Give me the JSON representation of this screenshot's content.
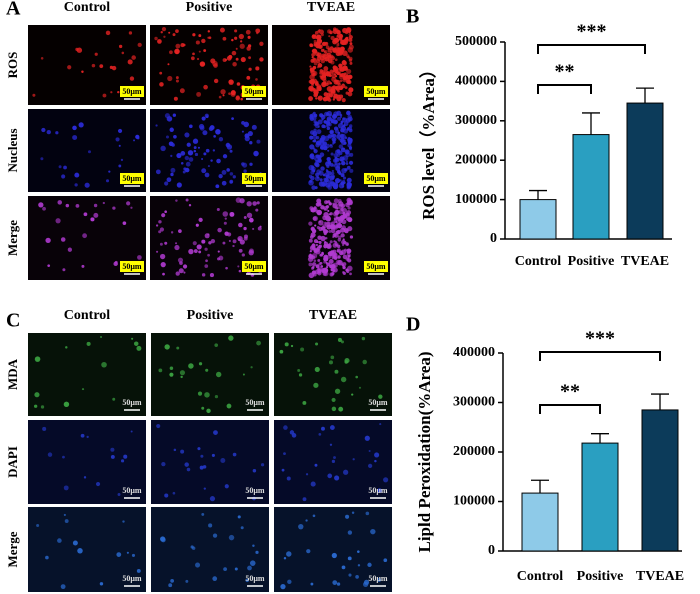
{
  "panels": [
    {
      "letter": "A",
      "columns": [
        "Control",
        "Positive",
        "TVEAE"
      ],
      "rows": [
        "ROS",
        "Nucleus",
        "Merge"
      ],
      "scale_bar": "50μm"
    },
    {
      "letter": "C",
      "columns": [
        "Control",
        "Positive",
        "TVEAE"
      ],
      "rows": [
        "MDA",
        "DAPI",
        "Merge"
      ],
      "scale_bar": "50μm"
    }
  ],
  "chart_data": [
    {
      "type": "bar",
      "panel_label": "B",
      "y_label": "ROS level（%Area）",
      "categories": [
        "Control",
        "Positive",
        "TVEAE"
      ],
      "values": [
        100000,
        265000,
        345000
      ],
      "errors": [
        23000,
        55000,
        38000
      ],
      "colors": [
        "#8ecae8",
        "#2a9fc1",
        "#0c3b5a"
      ],
      "ylim": [
        0,
        500000
      ],
      "yticks": [
        0,
        100000,
        200000,
        300000,
        400000,
        500000
      ],
      "annotations": [
        {
          "text": "**",
          "from": 0,
          "to": 1
        },
        {
          "text": "***",
          "from": 0,
          "to": 2
        }
      ]
    },
    {
      "type": "bar",
      "panel_label": "D",
      "y_label": "Lipld Peroxidation(%Area)",
      "categories": [
        "Control",
        "Positive",
        "TVEAE"
      ],
      "values": [
        117000,
        218000,
        285000
      ],
      "errors": [
        26000,
        19000,
        32000
      ],
      "colors": [
        "#8ecae8",
        "#2a9fc1",
        "#0c3b5a"
      ],
      "ylim": [
        0,
        400000
      ],
      "yticks": [
        0,
        100000,
        200000,
        300000,
        400000
      ],
      "annotations": [
        {
          "text": "**",
          "from": 0,
          "to": 1
        },
        {
          "text": "***",
          "from": 0,
          "to": 2
        }
      ]
    }
  ]
}
